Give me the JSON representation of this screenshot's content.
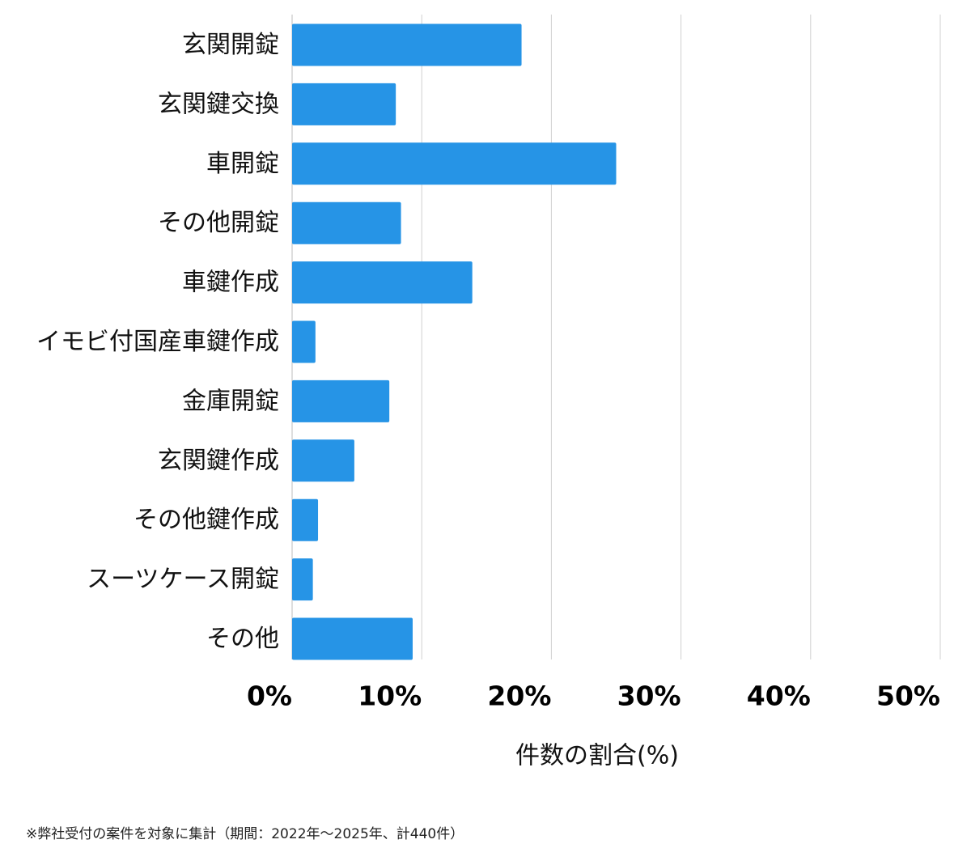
{
  "chart_data": {
    "type": "bar",
    "orientation": "horizontal",
    "categories": [
      "玄関開錠",
      "玄関鍵交換",
      "車開錠",
      "その他開錠",
      "車鍵作成",
      "イモビ付国産車鍵作成",
      "金庫開錠",
      "玄関鍵作成",
      "その他鍵作成",
      "スーツケース開錠",
      "その他"
    ],
    "values": [
      17.7,
      8.0,
      25.0,
      8.4,
      13.9,
      1.8,
      7.5,
      4.8,
      2.0,
      1.6,
      9.3
    ],
    "xlim": [
      0,
      50
    ],
    "xticks": [
      "0%",
      "10%",
      "20%",
      "30%",
      "40%",
      "50%"
    ],
    "xlabel": "件数の割合(%)",
    "grid": "vertical",
    "bar_color": "#2694e6",
    "gridline_color": "#d0d0d0"
  },
  "footnote": "※弊社受付の案件を対象に集計（期間：2022年～2025年、計440件）"
}
